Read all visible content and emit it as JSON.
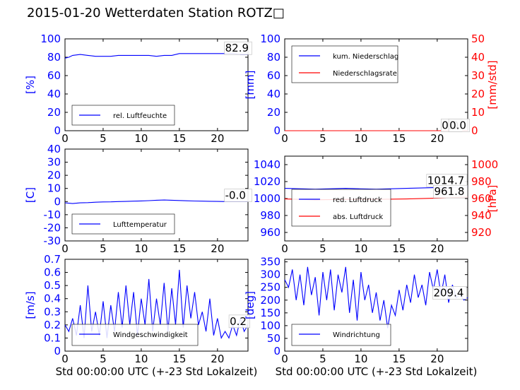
{
  "title": "2015-01-20 Wetterdaten Station ROTZ□",
  "colors": {
    "left_axis": "#0000ff",
    "right_axis": "#ff0000",
    "secondary_series": "#ff0000"
  },
  "chart_data": [
    {
      "type": "line",
      "name": "humidity",
      "xlim": [
        0,
        24
      ],
      "xticks": [
        0,
        5,
        10,
        15,
        20
      ],
      "ylabel": "[%]",
      "ylim": [
        0,
        100
      ],
      "yticks": [
        0,
        20,
        40,
        60,
        80,
        100
      ],
      "series": [
        {
          "name": "rel. Luftfeuchte",
          "color": "#0000ff",
          "x": [
            0,
            0.5,
            1,
            2,
            3,
            4,
            5,
            6,
            7,
            8,
            9,
            10,
            11,
            12,
            13,
            14,
            15,
            16,
            17,
            18,
            19,
            20,
            21,
            22,
            23,
            24
          ],
          "y": [
            79,
            80,
            82,
            83,
            82,
            81,
            81,
            81,
            82,
            82,
            82,
            82,
            82,
            81,
            82,
            82,
            84,
            84,
            84,
            84,
            84,
            84,
            84,
            84,
            83,
            83
          ]
        }
      ],
      "annotations": [
        {
          "text": "82.9",
          "x": 21,
          "y": 86,
          "axis": "left"
        }
      ],
      "legend": {
        "position": "lower-left"
      },
      "grid": false
    },
    {
      "type": "line",
      "name": "precipitation",
      "xlim": [
        0,
        24
      ],
      "xticks": [
        0,
        5,
        10,
        15,
        20
      ],
      "ylabel": "[mm]",
      "ylim": [
        0,
        100
      ],
      "yticks": [
        0,
        20,
        40,
        60,
        80,
        100
      ],
      "ylabel2": "[mm/std]",
      "ylim2": [
        0,
        50
      ],
      "yticks2": [
        0,
        10,
        20,
        30,
        40,
        50
      ],
      "series": [
        {
          "name": "kum. Niederschlag",
          "color": "#0000ff",
          "axis": "left",
          "x": [
            0,
            24
          ],
          "y": [
            0,
            0
          ]
        },
        {
          "name": "Niederschlagsrate",
          "color": "#ff0000",
          "axis": "right",
          "x": [
            0,
            24
          ],
          "y": [
            0,
            0
          ]
        }
      ],
      "annotations": [
        {
          "text": "0.0",
          "x": 20.6,
          "y": 2,
          "axis": "left"
        },
        {
          "text": "0.0",
          "x": 21.6,
          "y": 1,
          "axis": "right"
        }
      ],
      "legend": {
        "position": "upper-left"
      },
      "grid": false
    },
    {
      "type": "line",
      "name": "temperature",
      "xlim": [
        0,
        24
      ],
      "xticks": [
        0,
        5,
        10,
        15,
        20
      ],
      "ylabel": "[C]",
      "ylim": [
        -30,
        40
      ],
      "yticks": [
        -30,
        -20,
        -10,
        0,
        10,
        20,
        30,
        40
      ],
      "series": [
        {
          "name": "Lufttemperatur",
          "color": "#0000ff",
          "x": [
            0,
            1,
            2,
            3,
            4,
            5,
            6,
            7,
            8,
            9,
            10,
            11,
            12,
            13,
            14,
            15,
            16,
            17,
            18,
            19,
            20,
            21,
            22,
            23,
            24
          ],
          "y": [
            -1,
            -1.5,
            -1,
            -0.8,
            -0.5,
            -0.3,
            -0.2,
            0,
            0.1,
            0.3,
            0.5,
            0.7,
            1,
            1.2,
            1,
            0.8,
            0.6,
            0.4,
            0.3,
            0.2,
            0.1,
            0,
            0,
            0,
            0
          ]
        }
      ],
      "annotations": [
        {
          "text": "-0.0",
          "x": 21,
          "y": 2,
          "axis": "left"
        }
      ],
      "legend": {
        "position": "lower-left"
      },
      "grid": false
    },
    {
      "type": "line",
      "name": "pressure",
      "xlim": [
        0,
        24
      ],
      "xticks": [
        0,
        5,
        10,
        15,
        20
      ],
      "ylim": [
        950,
        1050
      ],
      "yticks": [
        960,
        980,
        1000,
        1020,
        1040
      ],
      "ylabel2": "[hPa]",
      "ylim2": [
        910,
        1010
      ],
      "yticks2": [
        920,
        940,
        960,
        980,
        1000
      ],
      "series": [
        {
          "name": "red. Luftdruck",
          "color": "#0000ff",
          "axis": "left",
          "x": [
            0,
            4,
            8,
            12,
            16,
            20,
            24
          ],
          "y": [
            1012,
            1011,
            1012,
            1011,
            1012,
            1013,
            1014
          ]
        },
        {
          "name": "abs. Luftdruck",
          "color": "#ff0000",
          "axis": "right",
          "x": [
            0,
            4,
            8,
            12,
            16,
            20,
            24
          ],
          "y": [
            959.5,
            958.5,
            959,
            959,
            959.5,
            960.5,
            961.8
          ]
        }
      ],
      "annotations": [
        {
          "text": "1014.7",
          "x": 18.7,
          "y": 1017,
          "axis": "left"
        },
        {
          "text": "961.8",
          "x": 19.6,
          "y": 964,
          "axis": "right"
        }
      ],
      "legend": {
        "position": "lower-left"
      },
      "grid": false
    },
    {
      "type": "line",
      "name": "windspeed",
      "xlim": [
        0,
        24
      ],
      "xticks": [
        0,
        5,
        10,
        15,
        20
      ],
      "xlabel": "Std 00:00:00 UTC (+-23 Std Lokalzeit)",
      "ylabel": "[m/s]",
      "ylim": [
        0,
        0.7
      ],
      "yticks": [
        0.0,
        0.1,
        0.2,
        0.3,
        0.4,
        0.5,
        0.6,
        0.7
      ],
      "series": [
        {
          "name": "Windgeschwindigkeit",
          "color": "#0000ff",
          "x": [
            0,
            0.5,
            1,
            1.5,
            2,
            2.5,
            3,
            3.5,
            4,
            4.5,
            5,
            5.5,
            6,
            6.5,
            7,
            7.5,
            8,
            8.5,
            9,
            9.5,
            10,
            10.5,
            11,
            11.5,
            12,
            12.5,
            13,
            13.5,
            14,
            14.5,
            15,
            15.5,
            16,
            16.5,
            17,
            17.5,
            18,
            18.5,
            19,
            19.5,
            20,
            20.5,
            21,
            21.5,
            22,
            22.5,
            23,
            23.5,
            24
          ],
          "y": [
            0.2,
            0.15,
            0.25,
            0.12,
            0.35,
            0.1,
            0.5,
            0.15,
            0.3,
            0.12,
            0.38,
            0.1,
            0.35,
            0.15,
            0.45,
            0.18,
            0.5,
            0.2,
            0.45,
            0.12,
            0.4,
            0.2,
            0.55,
            0.15,
            0.4,
            0.2,
            0.52,
            0.15,
            0.48,
            0.2,
            0.62,
            0.18,
            0.5,
            0.25,
            0.45,
            0.2,
            0.3,
            0.15,
            0.4,
            0.12,
            0.25,
            0.1,
            0.15,
            0.1,
            0.2,
            0.12,
            0.25,
            0.15,
            0.2
          ]
        }
      ],
      "annotations": [
        {
          "text": "0.2",
          "x": 21.6,
          "y": 0.2,
          "axis": "left"
        }
      ],
      "legend": {
        "position": "lower-left"
      },
      "grid": false
    },
    {
      "type": "line",
      "name": "winddirection",
      "xlim": [
        0,
        24
      ],
      "xticks": [
        0,
        5,
        10,
        15,
        20
      ],
      "xlabel": "Std 00:00:00 UTC (+-23 Std Lokalzeit)",
      "ylabel": "[deg]",
      "ylim": [
        0,
        360
      ],
      "yticks": [
        0,
        50,
        100,
        150,
        200,
        250,
        300,
        350
      ],
      "series": [
        {
          "name": "Windrichtung",
          "color": "#0000ff",
          "x": [
            0,
            0.5,
            1,
            1.5,
            2,
            2.5,
            3,
            3.5,
            4,
            4.5,
            5,
            5.5,
            6,
            6.5,
            7,
            7.5,
            8,
            8.5,
            9,
            9.5,
            10,
            10.5,
            11,
            11.5,
            12,
            12.5,
            13,
            13.5,
            14,
            14.5,
            15,
            15.5,
            16,
            16.5,
            17,
            17.5,
            18,
            18.5,
            19,
            19.5,
            20,
            20.5,
            21,
            21.5,
            22,
            22.5,
            23,
            23.5,
            24
          ],
          "y": [
            280,
            250,
            320,
            200,
            300,
            180,
            330,
            220,
            290,
            140,
            310,
            200,
            320,
            160,
            300,
            230,
            330,
            150,
            280,
            120,
            310,
            200,
            260,
            150,
            230,
            120,
            200,
            90,
            180,
            140,
            240,
            160,
            260,
            190,
            300,
            210,
            260,
            180,
            310,
            240,
            320,
            220,
            300,
            190,
            260,
            210,
            220,
            200,
            210
          ]
        }
      ],
      "annotations": [
        {
          "text": "209.4",
          "x": 19.5,
          "y": 215,
          "axis": "left"
        }
      ],
      "legend": {
        "position": "lower-left"
      },
      "grid": false
    }
  ]
}
